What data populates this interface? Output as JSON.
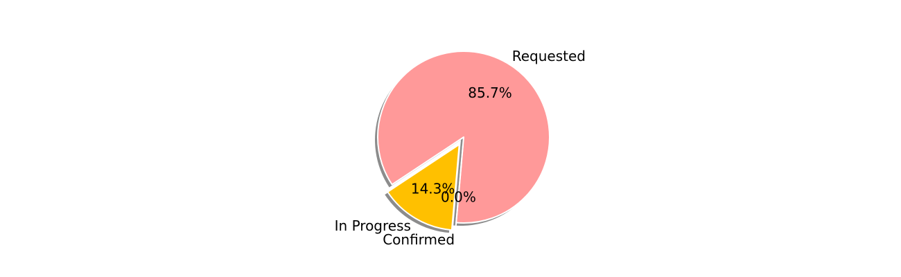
{
  "chart_data": {
    "type": "pie",
    "title": "",
    "slices": [
      {
        "label": "Requested",
        "value": 85.7,
        "pct_label": "85.7%",
        "color": "#ff9999",
        "exploded": false
      },
      {
        "label": "In Progress",
        "value": 14.3,
        "pct_label": "14.3%",
        "color": "#ffc000",
        "exploded": true
      },
      {
        "label": "Confirmed",
        "value": 0.0,
        "pct_label": "0.0%",
        "color": "#66b3ff",
        "exploded": true
      }
    ],
    "shadow": true,
    "legend": "none"
  }
}
